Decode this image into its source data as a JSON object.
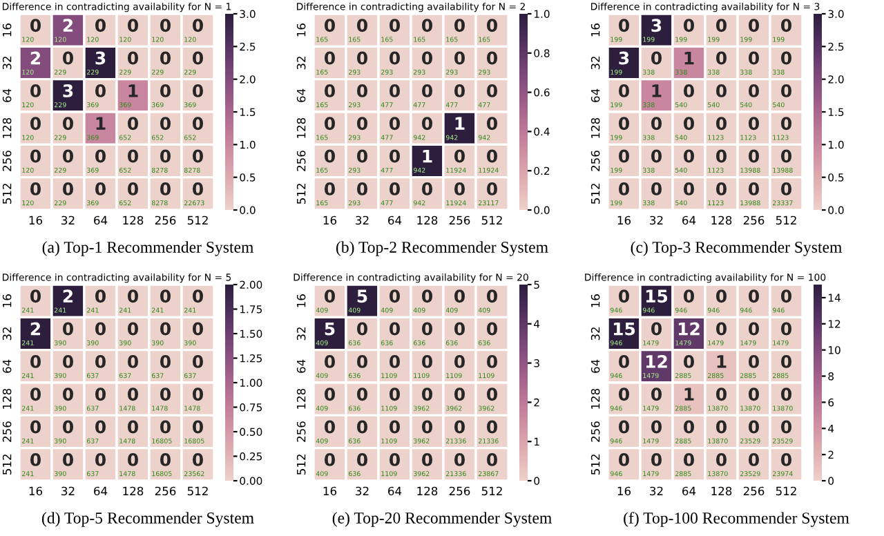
{
  "chart_data": [
    {
      "type": "heatmap",
      "title": "Difference in contradicting availability for N = 1",
      "categories": [
        "16",
        "32",
        "64",
        "128",
        "256",
        "512"
      ],
      "y_categories": [
        "16",
        "32",
        "64",
        "128",
        "256",
        "512"
      ],
      "cells": [
        [
          0,
          2,
          0,
          0,
          0,
          0
        ],
        [
          2,
          0,
          3,
          0,
          0,
          0
        ],
        [
          0,
          3,
          0,
          1,
          0,
          0
        ],
        [
          0,
          0,
          1,
          0,
          0,
          0
        ],
        [
          0,
          0,
          0,
          0,
          0,
          0
        ],
        [
          0,
          0,
          0,
          0,
          0,
          0
        ]
      ],
      "data_labels": true,
      "clim": [
        0,
        3
      ],
      "cticks": [
        {
          "value": 0,
          "label": "0.0"
        },
        {
          "value": 0.5,
          "label": "0.5"
        },
        {
          "value": 1,
          "label": "1.0"
        },
        {
          "value": 1.5,
          "label": "1.5"
        },
        {
          "value": 2,
          "label": "2.0"
        },
        {
          "value": 2.5,
          "label": "2.5"
        },
        {
          "value": 3,
          "label": "3.0"
        }
      ],
      "annotations": [
        "(a) Top-1 Recommender System",
        "120",
        "120",
        "120",
        "120",
        "120",
        "120",
        "120",
        "229",
        "229",
        "229",
        "229",
        "229",
        "120",
        "229",
        "369",
        "369",
        "369",
        "369",
        "120",
        "229",
        "369",
        "652",
        "652",
        "652",
        "120",
        "229",
        "369",
        "652",
        "8278",
        "8278",
        "120",
        "229",
        "369",
        "652",
        "8278",
        "22673"
      ]
    },
    {
      "type": "heatmap",
      "title": "Difference in contradicting availability for N = 2",
      "categories": [
        "16",
        "32",
        "64",
        "128",
        "256",
        "512"
      ],
      "y_categories": [
        "16",
        "32",
        "64",
        "128",
        "256",
        "512"
      ],
      "cells": [
        [
          0,
          0,
          0,
          0,
          0,
          0
        ],
        [
          0,
          0,
          0,
          0,
          0,
          0
        ],
        [
          0,
          0,
          0,
          0,
          0,
          0
        ],
        [
          0,
          0,
          0,
          0,
          1,
          0
        ],
        [
          0,
          0,
          0,
          1,
          0,
          0
        ],
        [
          0,
          0,
          0,
          0,
          0,
          0
        ]
      ],
      "data_labels": true,
      "clim": [
        0,
        1
      ],
      "cticks": [
        {
          "value": 0,
          "label": "0.0"
        },
        {
          "value": 0.2,
          "label": "0.2"
        },
        {
          "value": 0.4,
          "label": "0.4"
        },
        {
          "value": 0.6,
          "label": "0.6"
        },
        {
          "value": 0.8,
          "label": "0.8"
        },
        {
          "value": 1,
          "label": "1.0"
        }
      ],
      "annotations": [
        "(b) Top-2 Recommender System",
        "165",
        "165",
        "165",
        "165",
        "165",
        "165",
        "165",
        "293",
        "293",
        "293",
        "293",
        "293",
        "165",
        "293",
        "477",
        "477",
        "477",
        "477",
        "165",
        "293",
        "477",
        "942",
        "942",
        "942",
        "165",
        "293",
        "477",
        "942",
        "11924",
        "11924",
        "165",
        "293",
        "477",
        "942",
        "11924",
        "23117"
      ]
    },
    {
      "type": "heatmap",
      "title": "Difference in contradicting availability for N = 3",
      "categories": [
        "16",
        "32",
        "64",
        "128",
        "256",
        "512"
      ],
      "y_categories": [
        "16",
        "32",
        "64",
        "128",
        "256",
        "512"
      ],
      "cells": [
        [
          0,
          3,
          0,
          0,
          0,
          0
        ],
        [
          3,
          0,
          1,
          0,
          0,
          0
        ],
        [
          0,
          1,
          0,
          0,
          0,
          0
        ],
        [
          0,
          0,
          0,
          0,
          0,
          0
        ],
        [
          0,
          0,
          0,
          0,
          0,
          0
        ],
        [
          0,
          0,
          0,
          0,
          0,
          0
        ]
      ],
      "data_labels": true,
      "clim": [
        0,
        3
      ],
      "cticks": [
        {
          "value": 0,
          "label": "0.0"
        },
        {
          "value": 0.5,
          "label": "0.5"
        },
        {
          "value": 1,
          "label": "1.0"
        },
        {
          "value": 1.5,
          "label": "1.5"
        },
        {
          "value": 2,
          "label": "2.0"
        },
        {
          "value": 2.5,
          "label": "2.5"
        },
        {
          "value": 3,
          "label": "3.0"
        }
      ],
      "annotations": [
        "(c) Top-3 Recommender System",
        "199",
        "199",
        "199",
        "199",
        "199",
        "199",
        "199",
        "338",
        "338",
        "338",
        "338",
        "338",
        "199",
        "338",
        "540",
        "540",
        "540",
        "540",
        "199",
        "338",
        "540",
        "1123",
        "1123",
        "1123",
        "199",
        "338",
        "540",
        "1123",
        "13988",
        "13988",
        "199",
        "338",
        "540",
        "1123",
        "13988",
        "23337"
      ]
    },
    {
      "type": "heatmap",
      "title": "Difference in contradicting availability for N = 5",
      "categories": [
        "16",
        "32",
        "64",
        "128",
        "256",
        "512"
      ],
      "y_categories": [
        "16",
        "32",
        "64",
        "128",
        "256",
        "512"
      ],
      "cells": [
        [
          0,
          2,
          0,
          0,
          0,
          0
        ],
        [
          2,
          0,
          0,
          0,
          0,
          0
        ],
        [
          0,
          0,
          0,
          0,
          0,
          0
        ],
        [
          0,
          0,
          0,
          0,
          0,
          0
        ],
        [
          0,
          0,
          0,
          0,
          0,
          0
        ],
        [
          0,
          0,
          0,
          0,
          0,
          0
        ]
      ],
      "data_labels": true,
      "clim": [
        0,
        2
      ],
      "cticks": [
        {
          "value": 0,
          "label": "0.00"
        },
        {
          "value": 0.25,
          "label": "0.25"
        },
        {
          "value": 0.5,
          "label": "0.50"
        },
        {
          "value": 0.75,
          "label": "0.75"
        },
        {
          "value": 1,
          "label": "1.00"
        },
        {
          "value": 1.25,
          "label": "1.25"
        },
        {
          "value": 1.5,
          "label": "1.50"
        },
        {
          "value": 1.75,
          "label": "1.75"
        },
        {
          "value": 2,
          "label": "2.00"
        }
      ],
      "annotations": [
        "(d) Top-5 Recommender System",
        "241",
        "241",
        "241",
        "241",
        "241",
        "241",
        "241",
        "390",
        "390",
        "390",
        "390",
        "390",
        "241",
        "390",
        "637",
        "637",
        "637",
        "637",
        "241",
        "390",
        "637",
        "1478",
        "1478",
        "1478",
        "241",
        "390",
        "637",
        "1478",
        "16805",
        "16805",
        "241",
        "390",
        "637",
        "1478",
        "16805",
        "23562"
      ]
    },
    {
      "type": "heatmap",
      "title": "Difference in contradicting availability for N = 20",
      "categories": [
        "16",
        "32",
        "64",
        "128",
        "256",
        "512"
      ],
      "y_categories": [
        "16",
        "32",
        "64",
        "128",
        "256",
        "512"
      ],
      "cells": [
        [
          0,
          5,
          0,
          0,
          0,
          0
        ],
        [
          5,
          0,
          0,
          0,
          0,
          0
        ],
        [
          0,
          0,
          0,
          0,
          0,
          0
        ],
        [
          0,
          0,
          0,
          0,
          0,
          0
        ],
        [
          0,
          0,
          0,
          0,
          0,
          0
        ],
        [
          0,
          0,
          0,
          0,
          0,
          0
        ]
      ],
      "data_labels": true,
      "clim": [
        0,
        5
      ],
      "cticks": [
        0,
        1,
        2,
        3,
        4,
        5
      ],
      "annotations": [
        "(e) Top-20 Recommender System",
        "409",
        "409",
        "409",
        "409",
        "409",
        "409",
        "409",
        "636",
        "636",
        "636",
        "636",
        "636",
        "409",
        "636",
        "1109",
        "1109",
        "1109",
        "1109",
        "409",
        "636",
        "1109",
        "3962",
        "3962",
        "3962",
        "409",
        "636",
        "1109",
        "3962",
        "21336",
        "21336",
        "409",
        "636",
        "1109",
        "3962",
        "21336",
        "23867"
      ]
    },
    {
      "type": "heatmap",
      "title": "Difference in contradicting availability for N = 100",
      "categories": [
        "16",
        "32",
        "64",
        "128",
        "256",
        "512"
      ],
      "y_categories": [
        "16",
        "32",
        "64",
        "128",
        "256",
        "512"
      ],
      "cells": [
        [
          0,
          15,
          0,
          0,
          0,
          0
        ],
        [
          15,
          0,
          12,
          0,
          0,
          0
        ],
        [
          0,
          12,
          0,
          1,
          0,
          0
        ],
        [
          0,
          0,
          1,
          0,
          0,
          0
        ],
        [
          0,
          0,
          0,
          0,
          0,
          0
        ],
        [
          0,
          0,
          0,
          0,
          0,
          0
        ]
      ],
      "data_labels": true,
      "clim": [
        0,
        15
      ],
      "cticks": [
        0,
        2,
        4,
        6,
        8,
        10,
        12,
        14
      ],
      "annotations": [
        "(f) Top-100 Recommender System",
        "946",
        "946",
        "946",
        "946",
        "946",
        "946",
        "946",
        "1479",
        "1479",
        "1479",
        "1479",
        "1479",
        "946",
        "1479",
        "2885",
        "2885",
        "2885",
        "2885",
        "946",
        "1479",
        "2885",
        "13870",
        "13870",
        "13870",
        "946",
        "1479",
        "2885",
        "13870",
        "23529",
        "23529",
        "946",
        "1479",
        "2885",
        "13870",
        "23529",
        "23974"
      ]
    }
  ]
}
